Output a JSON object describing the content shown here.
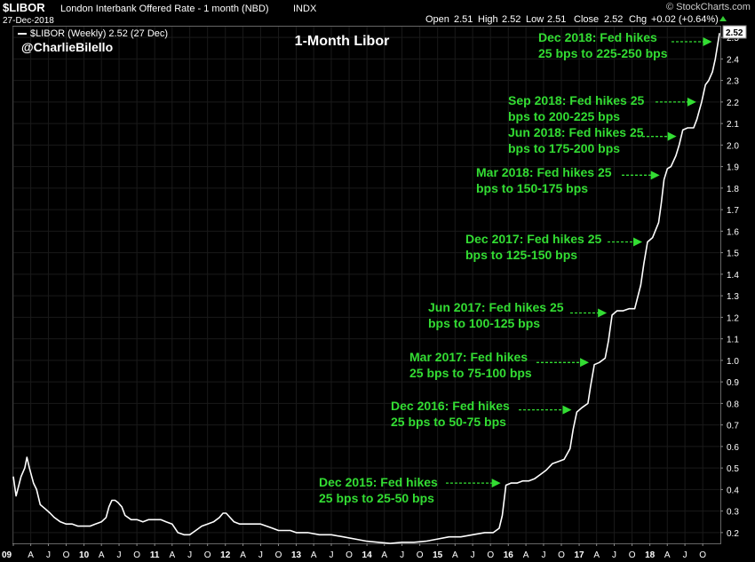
{
  "header": {
    "symbol": "$LIBOR",
    "description": "London Interbank Offered Rate - 1 month (NBD)",
    "exchange": "INDX",
    "date": "27-Dec-2018",
    "ohlc": [
      {
        "label": "Open",
        "value": "2.51"
      },
      {
        "label": "High",
        "value": "2.52"
      },
      {
        "label": "Low",
        "value": "2.51"
      },
      {
        "label": "Close",
        "value": "2.52"
      }
    ],
    "change_label": "Chg",
    "change_value": "+0.02 (+0.64%)",
    "brand": "© StockCharts.com"
  },
  "legend_text": "$LIBOR (Weekly) 2.52 (27 Dec)",
  "handle": "@CharlieBilello",
  "colors": {
    "line": "#ffffff",
    "annotation": "#33dd33",
    "background": "#000000",
    "grid": "#1a1a1a"
  },
  "chart_data": {
    "type": "line",
    "title": "1-Month Libor",
    "ylim": [
      0.15,
      2.55
    ],
    "yticks": [
      0.2,
      0.3,
      0.4,
      0.5,
      0.6,
      0.7,
      0.8,
      0.9,
      1.0,
      1.1,
      1.2,
      1.3,
      1.4,
      1.5,
      1.6,
      1.7,
      1.8,
      1.9,
      2.0,
      2.1,
      2.2,
      2.3,
      2.4,
      2.5
    ],
    "last_value_label": "2.52",
    "xlim": [
      "2009-01-01",
      "2018-12-31"
    ],
    "xticks": [
      {
        "date": "2009-01-01",
        "label": "09",
        "major": true
      },
      {
        "date": "2009-04-01",
        "label": "A"
      },
      {
        "date": "2009-07-01",
        "label": "J"
      },
      {
        "date": "2009-10-01",
        "label": "O"
      },
      {
        "date": "2010-01-01",
        "label": "10",
        "major": true
      },
      {
        "date": "2010-04-01",
        "label": "A"
      },
      {
        "date": "2010-07-01",
        "label": "J"
      },
      {
        "date": "2010-10-01",
        "label": "O"
      },
      {
        "date": "2011-01-01",
        "label": "11",
        "major": true
      },
      {
        "date": "2011-04-01",
        "label": "A"
      },
      {
        "date": "2011-07-01",
        "label": "J"
      },
      {
        "date": "2011-10-01",
        "label": "O"
      },
      {
        "date": "2012-01-01",
        "label": "12",
        "major": true
      },
      {
        "date": "2012-04-01",
        "label": "A"
      },
      {
        "date": "2012-07-01",
        "label": "J"
      },
      {
        "date": "2012-10-01",
        "label": "O"
      },
      {
        "date": "2013-01-01",
        "label": "13",
        "major": true
      },
      {
        "date": "2013-04-01",
        "label": "A"
      },
      {
        "date": "2013-07-01",
        "label": "J"
      },
      {
        "date": "2013-10-01",
        "label": "O"
      },
      {
        "date": "2014-01-01",
        "label": "14",
        "major": true
      },
      {
        "date": "2014-04-01",
        "label": "A"
      },
      {
        "date": "2014-07-01",
        "label": "J"
      },
      {
        "date": "2014-10-01",
        "label": "O"
      },
      {
        "date": "2015-01-01",
        "label": "15",
        "major": true
      },
      {
        "date": "2015-04-01",
        "label": "A"
      },
      {
        "date": "2015-07-01",
        "label": "J"
      },
      {
        "date": "2015-10-01",
        "label": "O"
      },
      {
        "date": "2016-01-01",
        "label": "16",
        "major": true
      },
      {
        "date": "2016-04-01",
        "label": "A"
      },
      {
        "date": "2016-07-01",
        "label": "J"
      },
      {
        "date": "2016-10-01",
        "label": "O"
      },
      {
        "date": "2017-01-01",
        "label": "17",
        "major": true
      },
      {
        "date": "2017-04-01",
        "label": "A"
      },
      {
        "date": "2017-07-01",
        "label": "J"
      },
      {
        "date": "2017-10-01",
        "label": "O"
      },
      {
        "date": "2018-01-01",
        "label": "18",
        "major": true
      },
      {
        "date": "2018-04-01",
        "label": "A"
      },
      {
        "date": "2018-07-01",
        "label": "J"
      },
      {
        "date": "2018-10-01",
        "label": "O"
      }
    ],
    "series": [
      {
        "values": [
          [
            "2009-01-01",
            0.46
          ],
          [
            "2009-01-15",
            0.37
          ],
          [
            "2009-02-10",
            0.46
          ],
          [
            "2009-03-01",
            0.5
          ],
          [
            "2009-03-12",
            0.55
          ],
          [
            "2009-03-25",
            0.5
          ],
          [
            "2009-04-15",
            0.43
          ],
          [
            "2009-05-01",
            0.4
          ],
          [
            "2009-05-20",
            0.33
          ],
          [
            "2009-06-15",
            0.31
          ],
          [
            "2009-07-10",
            0.29
          ],
          [
            "2009-08-01",
            0.27
          ],
          [
            "2009-09-01",
            0.25
          ],
          [
            "2009-10-01",
            0.24
          ],
          [
            "2009-11-01",
            0.24
          ],
          [
            "2009-12-01",
            0.23
          ],
          [
            "2010-01-01",
            0.23
          ],
          [
            "2010-02-01",
            0.23
          ],
          [
            "2010-03-01",
            0.24
          ],
          [
            "2010-04-01",
            0.25
          ],
          [
            "2010-04-25",
            0.27
          ],
          [
            "2010-05-10",
            0.32
          ],
          [
            "2010-05-25",
            0.35
          ],
          [
            "2010-06-10",
            0.35
          ],
          [
            "2010-06-25",
            0.34
          ],
          [
            "2010-07-15",
            0.32
          ],
          [
            "2010-08-01",
            0.28
          ],
          [
            "2010-09-01",
            0.26
          ],
          [
            "2010-10-01",
            0.26
          ],
          [
            "2010-11-01",
            0.25
          ],
          [
            "2010-12-01",
            0.26
          ],
          [
            "2011-01-01",
            0.26
          ],
          [
            "2011-02-01",
            0.26
          ],
          [
            "2011-03-01",
            0.25
          ],
          [
            "2011-04-01",
            0.24
          ],
          [
            "2011-05-01",
            0.2
          ],
          [
            "2011-06-01",
            0.19
          ],
          [
            "2011-07-01",
            0.19
          ],
          [
            "2011-08-01",
            0.21
          ],
          [
            "2011-09-01",
            0.23
          ],
          [
            "2011-10-01",
            0.24
          ],
          [
            "2011-11-01",
            0.25
          ],
          [
            "2011-12-01",
            0.27
          ],
          [
            "2011-12-20",
            0.29
          ],
          [
            "2012-01-05",
            0.29
          ],
          [
            "2012-01-25",
            0.27
          ],
          [
            "2012-02-15",
            0.25
          ],
          [
            "2012-03-15",
            0.24
          ],
          [
            "2012-05-01",
            0.24
          ],
          [
            "2012-06-01",
            0.24
          ],
          [
            "2012-07-01",
            0.24
          ],
          [
            "2012-08-01",
            0.23
          ],
          [
            "2012-09-01",
            0.22
          ],
          [
            "2012-10-01",
            0.21
          ],
          [
            "2012-11-01",
            0.21
          ],
          [
            "2012-12-01",
            0.21
          ],
          [
            "2013-01-01",
            0.2
          ],
          [
            "2013-03-01",
            0.2
          ],
          [
            "2013-05-01",
            0.19
          ],
          [
            "2013-07-01",
            0.19
          ],
          [
            "2013-09-01",
            0.18
          ],
          [
            "2013-11-01",
            0.17
          ],
          [
            "2014-01-01",
            0.16
          ],
          [
            "2014-03-01",
            0.155
          ],
          [
            "2014-05-01",
            0.15
          ],
          [
            "2014-07-01",
            0.155
          ],
          [
            "2014-09-01",
            0.155
          ],
          [
            "2014-11-01",
            0.16
          ],
          [
            "2015-01-01",
            0.17
          ],
          [
            "2015-03-01",
            0.18
          ],
          [
            "2015-05-01",
            0.18
          ],
          [
            "2015-07-01",
            0.19
          ],
          [
            "2015-09-01",
            0.2
          ],
          [
            "2015-10-15",
            0.2
          ],
          [
            "2015-11-15",
            0.22
          ],
          [
            "2015-12-01",
            0.28
          ],
          [
            "2015-12-20",
            0.42
          ],
          [
            "2016-01-15",
            0.43
          ],
          [
            "2016-02-15",
            0.43
          ],
          [
            "2016-03-15",
            0.44
          ],
          [
            "2016-04-15",
            0.44
          ],
          [
            "2016-05-15",
            0.45
          ],
          [
            "2016-06-15",
            0.47
          ],
          [
            "2016-07-15",
            0.49
          ],
          [
            "2016-08-15",
            0.52
          ],
          [
            "2016-09-15",
            0.53
          ],
          [
            "2016-10-15",
            0.54
          ],
          [
            "2016-11-15",
            0.59
          ],
          [
            "2016-12-01",
            0.68
          ],
          [
            "2016-12-20",
            0.76
          ],
          [
            "2017-01-15",
            0.78
          ],
          [
            "2017-02-15",
            0.8
          ],
          [
            "2017-03-01",
            0.88
          ],
          [
            "2017-03-20",
            0.98
          ],
          [
            "2017-04-15",
            0.99
          ],
          [
            "2017-05-15",
            1.01
          ],
          [
            "2017-06-01",
            1.09
          ],
          [
            "2017-06-20",
            1.21
          ],
          [
            "2017-07-15",
            1.23
          ],
          [
            "2017-08-15",
            1.23
          ],
          [
            "2017-09-15",
            1.24
          ],
          [
            "2017-10-15",
            1.24
          ],
          [
            "2017-11-15",
            1.35
          ],
          [
            "2017-12-01",
            1.45
          ],
          [
            "2017-12-20",
            1.55
          ],
          [
            "2018-01-15",
            1.57
          ],
          [
            "2018-02-15",
            1.64
          ],
          [
            "2018-03-01",
            1.73
          ],
          [
            "2018-03-15",
            1.84
          ],
          [
            "2018-04-01",
            1.89
          ],
          [
            "2018-04-20",
            1.9
          ],
          [
            "2018-05-15",
            1.95
          ],
          [
            "2018-06-01",
            2.0
          ],
          [
            "2018-06-20",
            2.07
          ],
          [
            "2018-07-15",
            2.08
          ],
          [
            "2018-08-15",
            2.08
          ],
          [
            "2018-09-01",
            2.12
          ],
          [
            "2018-09-25",
            2.2
          ],
          [
            "2018-10-15",
            2.28
          ],
          [
            "2018-11-01",
            2.3
          ],
          [
            "2018-11-20",
            2.34
          ],
          [
            "2018-12-05",
            2.4
          ],
          [
            "2018-12-27",
            2.52
          ]
        ]
      }
    ],
    "annotations": [
      {
        "line1": "Dec 2018: Fed hikes",
        "line2": "25 bps to 225-250 bps",
        "date": "2018-12-15",
        "value": 2.48
      },
      {
        "line1": "Sep 2018: Fed hikes 25",
        "line2": "bps to 200-225 bps",
        "date": "2018-09-25",
        "value": 2.2
      },
      {
        "line1": "Jun 2018: Fed hikes 25",
        "line2": "bps to 175-200 bps",
        "date": "2018-06-15",
        "value": 2.04
      },
      {
        "line1": "Mar 2018: Fed hikes 25",
        "line2": "bps to 150-175 bps",
        "date": "2018-03-20",
        "value": 1.86
      },
      {
        "line1": "Dec 2017: Fed hikes 25",
        "line2": "bps to 125-150 bps",
        "date": "2017-12-20",
        "value": 1.55
      },
      {
        "line1": "Jun 2017: Fed hikes 25",
        "line2": "bps to 100-125 bps",
        "date": "2017-06-20",
        "value": 1.22
      },
      {
        "line1": "Mar 2017: Fed hikes",
        "line2": "25 bps to 75-100 bps",
        "date": "2017-03-20",
        "value": 0.99
      },
      {
        "line1": "Dec 2016: Fed hikes",
        "line2": "25 bps to 50-75 bps",
        "date": "2016-12-20",
        "value": 0.77
      },
      {
        "line1": "Dec 2015: Fed hikes",
        "line2": "25 bps to 25-50 bps",
        "date": "2015-12-20",
        "value": 0.43
      }
    ]
  }
}
